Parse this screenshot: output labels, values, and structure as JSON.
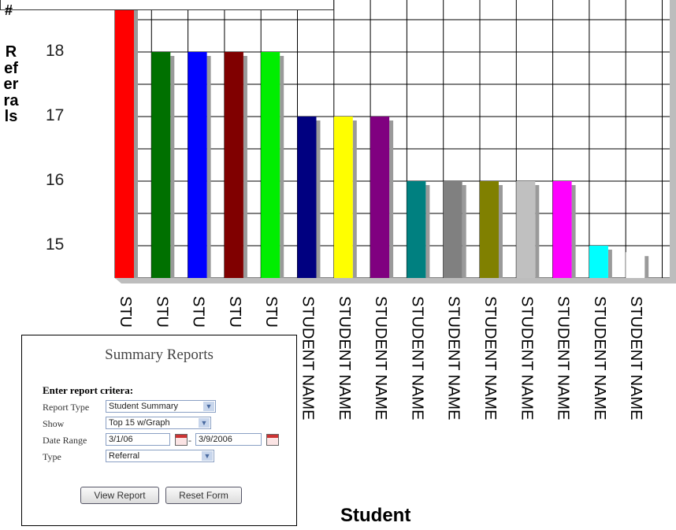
{
  "chart_data": {
    "type": "bar",
    "xlabel": "Student",
    "ylabel_symbol": "#",
    "ylabel": "Referrals",
    "y_ticks": [
      15,
      16,
      17,
      18
    ],
    "ylim": [
      14.5,
      19.2
    ],
    "grid": true,
    "categories": [
      "STUDENT NAME",
      "STUDENT NAME",
      "STUDENT NAME",
      "STUDENT NAME",
      "STUDENT NAME",
      "STUDENT NAME",
      "STUDENT NAME",
      "STUDENT NAME",
      "STUDENT NAME",
      "STUDENT NAME",
      "STUDENT NAME",
      "STUDENT NAME",
      "STUDENT NAME",
      "STUDENT NAME",
      "STUDENT NAME"
    ],
    "category_visible": [
      "STU",
      "STU",
      "STU",
      "STU",
      "STU",
      "STUDENT NAME",
      "STUDENT NAME",
      "STUDENT NAME",
      "STUDENT NAME",
      "STUDENT NAME",
      "STUDENT NAME",
      "STUDENT NAME",
      "STUDENT NAME",
      "STUDENT NAME",
      "STUDENT NAME"
    ],
    "values": [
      19.2,
      18,
      18,
      18,
      18,
      17,
      17,
      17,
      16,
      16,
      16,
      16,
      16,
      15,
      14.9
    ],
    "colors": [
      "#ff0000",
      "#007000",
      "#0000ff",
      "#800000",
      "#00ee00",
      "#000080",
      "#ffff00",
      "#800080",
      "#008080",
      "#808080",
      "#808000",
      "#c0c0c0",
      "#ff00ff",
      "#00ffff",
      "#ffffff"
    ]
  },
  "panel": {
    "title": "Summary Reports",
    "heading": "Enter report critera:",
    "report_type_label": "Report Type",
    "report_type_value": "Student Summary",
    "show_label": "Show",
    "show_value": "Top 15 w/Graph",
    "date_range_label": "Date Range",
    "date_from": "3/1/06",
    "date_sep": "-",
    "date_to": "3/9/2006",
    "type_label": "Type",
    "type_value": "Referral",
    "view_report": "View Report",
    "reset_form": "Reset Form"
  }
}
